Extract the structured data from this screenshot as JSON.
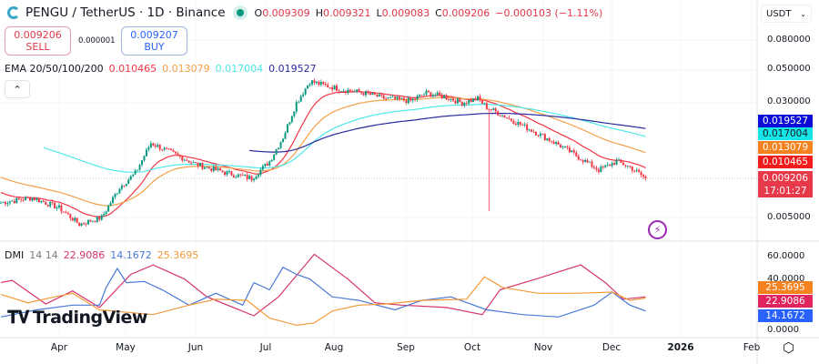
{
  "header": {
    "symbol": "PENGU",
    "quote": "TetherUS",
    "interval": "1D",
    "exchange": "Binance",
    "title": "PENGU / TetherUS · 1D · Binance",
    "ohlc": [
      {
        "k": "O",
        "v": "0.009309"
      },
      {
        "k": "H",
        "v": "0.009321"
      },
      {
        "k": "L",
        "v": "0.009083"
      },
      {
        "k": "C",
        "v": "0.009206"
      }
    ],
    "change": "−0.000103 (−1.11%)"
  },
  "trade": {
    "sell_price": "0.009206",
    "sell_label": "SELL",
    "spread": "0.000001",
    "buy_price": "0.009207",
    "buy_label": "BUY"
  },
  "ema_legend": {
    "label": "EMA 20/50/100/200",
    "values": [
      "0.010465",
      "0.013079",
      "0.017004",
      "0.019527"
    ],
    "colors": [
      "#f23645",
      "#f5a04a",
      "#4de8e8",
      "#2a2a9e"
    ]
  },
  "dmi_legend": {
    "label": "DMI",
    "params": "14 14",
    "values": [
      "22.9086",
      "14.1672",
      "25.3695"
    ],
    "colors": [
      "#d6336c",
      "#4a78d6",
      "#f29a3a"
    ]
  },
  "currency_select": "USDT",
  "price_axis": {
    "ticks": [
      "0.080000",
      "0.050000",
      "0.030000",
      "0.005000"
    ],
    "scale": "log"
  },
  "price_tags": [
    {
      "text": "0.019527",
      "color": "#0c0cd6"
    },
    {
      "text": "0.017004",
      "color": "#16e5e5",
      "fg": "#131722"
    },
    {
      "text": "0.013079",
      "color": "#f5821f"
    },
    {
      "text": "0.010465",
      "color": "#f21c1c"
    },
    {
      "text": "0.009206",
      "time": "17:01:27",
      "color": "#e8394a"
    }
  ],
  "dmi_axis": {
    "ticks": [
      "60.0000",
      "40.0000",
      "0.0000"
    ]
  },
  "dmi_tags": [
    {
      "text": "25.3695",
      "color": "#f5821f"
    },
    {
      "text": "22.9086",
      "color": "#e0245e"
    },
    {
      "text": "14.1672",
      "color": "#2962ff"
    }
  ],
  "time_axis": [
    "Apr",
    "May",
    "Jun",
    "Jul",
    "Aug",
    "Sep",
    "Oct",
    "Nov",
    "Dec",
    "2026",
    "Feb"
  ],
  "branding": "TradingView",
  "chart_data": {
    "type": "candlestick",
    "y_scale": "log",
    "ylim": [
      0.0035,
      0.1
    ],
    "close_path": [
      [
        "2025-03-06",
        0.0063
      ],
      [
        "2025-03-20",
        0.0068
      ],
      [
        "2025-04-01",
        0.0058
      ],
      [
        "2025-04-10",
        0.0045
      ],
      [
        "2025-04-20",
        0.005
      ],
      [
        "2025-04-28",
        0.008
      ],
      [
        "2025-05-05",
        0.01
      ],
      [
        "2025-05-12",
        0.016
      ],
      [
        "2025-05-20",
        0.014
      ],
      [
        "2025-06-01",
        0.0115
      ],
      [
        "2025-06-15",
        0.01
      ],
      [
        "2025-06-26",
        0.0092
      ],
      [
        "2025-07-04",
        0.012
      ],
      [
        "2025-07-10",
        0.0175
      ],
      [
        "2025-07-16",
        0.03
      ],
      [
        "2025-07-22",
        0.042
      ],
      [
        "2025-07-27",
        0.04
      ],
      [
        "2025-08-05",
        0.037
      ],
      [
        "2025-08-15",
        0.035
      ],
      [
        "2025-08-25",
        0.032
      ],
      [
        "2025-09-05",
        0.031
      ],
      [
        "2025-09-12",
        0.035
      ],
      [
        "2025-09-20",
        0.033
      ],
      [
        "2025-09-28",
        0.03
      ],
      [
        "2025-10-05",
        0.032
      ],
      [
        "2025-10-09",
        0.028
      ],
      [
        "2025-10-20",
        0.023
      ],
      [
        "2025-11-01",
        0.0185
      ],
      [
        "2025-11-12",
        0.015
      ],
      [
        "2025-11-22",
        0.012
      ],
      [
        "2025-11-28",
        0.0105
      ],
      [
        "2025-12-06",
        0.012
      ],
      [
        "2025-12-12",
        0.011
      ],
      [
        "2025-12-19",
        0.009206
      ]
    ],
    "flash_crash": {
      "date": "2025-10-10",
      "low": 0.0055
    },
    "ema": [
      {
        "period": 20,
        "color": "#f23645"
      },
      {
        "period": 50,
        "color": "#f5a04a"
      },
      {
        "period": 100,
        "color": "#4de8e8"
      },
      {
        "period": 200,
        "color": "#2a2a9e"
      }
    ],
    "dmi": {
      "ylim": [
        0,
        62
      ],
      "series": [
        {
          "color": "#d6336c",
          "points": [
            [
              "2025-03-06",
              38
            ],
            [
              "2025-03-11",
              40
            ],
            [
              "2025-03-26",
              20
            ],
            [
              "2025-04-07",
              31
            ],
            [
              "2025-04-19",
              17
            ],
            [
              "2025-05-03",
              45
            ],
            [
              "2025-05-13",
              53
            ],
            [
              "2025-05-27",
              41
            ],
            [
              "2025-06-06",
              26
            ],
            [
              "2025-06-27",
              10
            ],
            [
              "2025-07-08",
              26
            ],
            [
              "2025-07-24",
              62
            ],
            [
              "2025-08-08",
              41
            ],
            [
              "2025-08-20",
              21
            ],
            [
              "2025-09-01",
              19
            ],
            [
              "2025-09-21",
              17
            ],
            [
              "2025-10-07",
              11
            ],
            [
              "2025-10-15",
              32
            ],
            [
              "2025-10-31",
              41
            ],
            [
              "2025-11-20",
              53
            ],
            [
              "2025-12-01",
              38
            ],
            [
              "2025-12-09",
              24
            ],
            [
              "2025-12-19",
              26
            ]
          ]
        },
        {
          "color": "#4a78d6",
          "points": [
            [
              "2025-03-06",
              9
            ],
            [
              "2025-03-22",
              15
            ],
            [
              "2025-04-07",
              19
            ],
            [
              "2025-04-19",
              19
            ],
            [
              "2025-04-22",
              34
            ],
            [
              "2025-04-27",
              50
            ],
            [
              "2025-05-01",
              38
            ],
            [
              "2025-05-09",
              39
            ],
            [
              "2025-05-17",
              32
            ],
            [
              "2025-05-29",
              19
            ],
            [
              "2025-06-10",
              29
            ],
            [
              "2025-06-22",
              19
            ],
            [
              "2025-06-27",
              38
            ],
            [
              "2025-07-04",
              32
            ],
            [
              "2025-07-10",
              51
            ],
            [
              "2025-07-16",
              45
            ],
            [
              "2025-07-22",
              41
            ],
            [
              "2025-08-01",
              26
            ],
            [
              "2025-08-13",
              23
            ],
            [
              "2025-08-21",
              19
            ],
            [
              "2025-08-29",
              15
            ],
            [
              "2025-09-10",
              23
            ],
            [
              "2025-09-23",
              26
            ],
            [
              "2025-10-09",
              15
            ],
            [
              "2025-10-25",
              11
            ],
            [
              "2025-11-10",
              9
            ],
            [
              "2025-11-26",
              19
            ],
            [
              "2025-12-04",
              30
            ],
            [
              "2025-12-12",
              19
            ],
            [
              "2025-12-19",
              14
            ]
          ]
        },
        {
          "color": "#f29a3a",
          "points": [
            [
              "2025-03-06",
              28
            ],
            [
              "2025-03-18",
              21
            ],
            [
              "2025-03-30",
              26
            ],
            [
              "2025-04-07",
              29
            ],
            [
              "2025-04-19",
              15
            ],
            [
              "2025-05-13",
              11
            ],
            [
              "2025-05-29",
              19
            ],
            [
              "2025-06-10",
              24
            ],
            [
              "2025-06-24",
              23
            ],
            [
              "2025-07-04",
              8
            ],
            [
              "2025-07-16",
              2
            ],
            [
              "2025-07-24",
              4
            ],
            [
              "2025-08-01",
              14
            ],
            [
              "2025-08-13",
              19
            ],
            [
              "2025-08-25",
              20
            ],
            [
              "2025-09-10",
              23
            ],
            [
              "2025-09-30",
              24
            ],
            [
              "2025-10-08",
              43
            ],
            [
              "2025-10-16",
              34
            ],
            [
              "2025-11-01",
              29
            ],
            [
              "2025-11-17",
              29
            ],
            [
              "2025-12-04",
              30
            ],
            [
              "2025-12-12",
              23
            ],
            [
              "2025-12-19",
              25
            ]
          ]
        }
      ]
    }
  }
}
